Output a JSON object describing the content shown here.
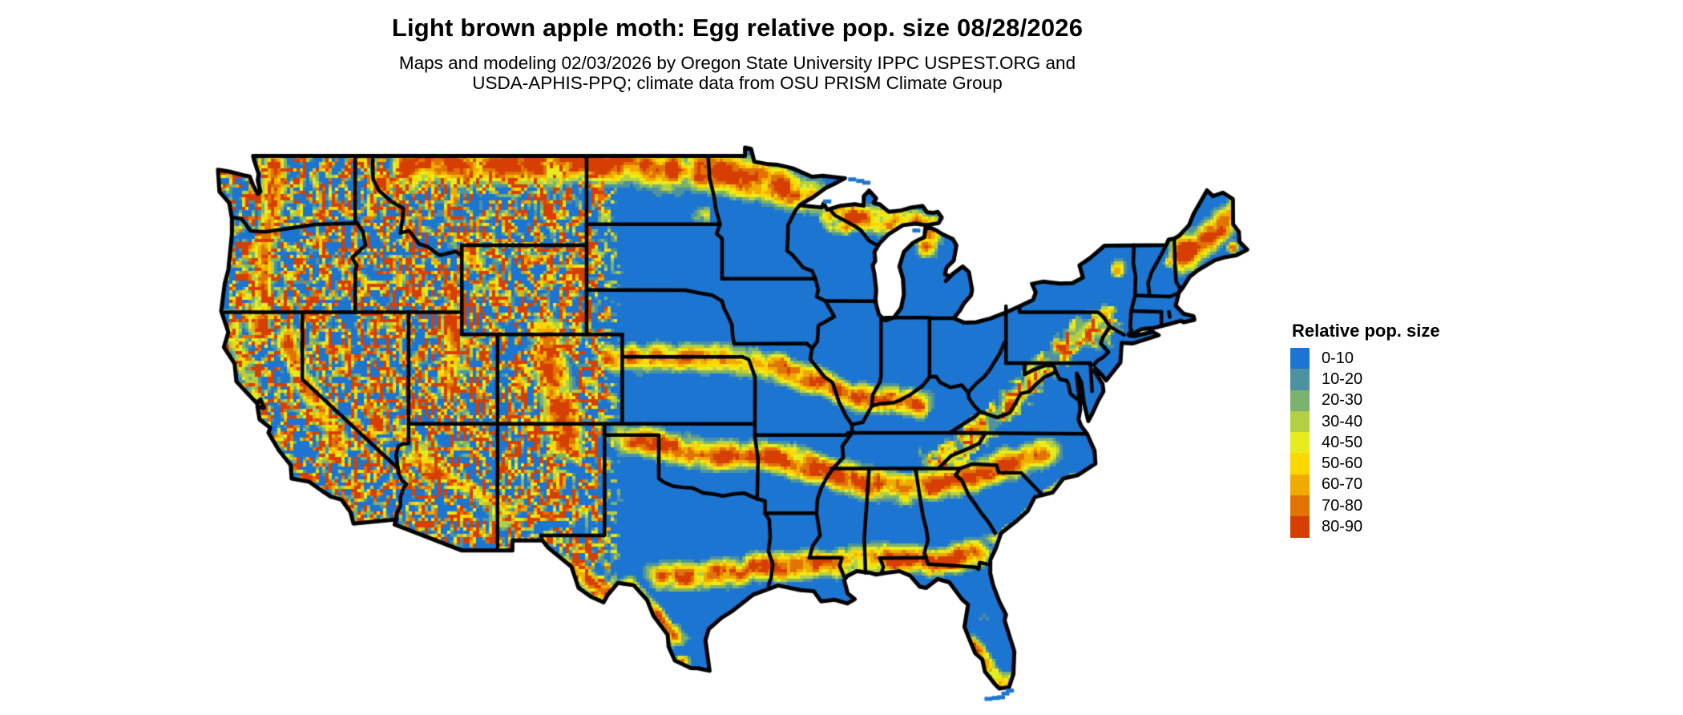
{
  "header": {
    "title": "Light brown apple moth: Egg relative pop. size 08/28/2026",
    "subtitle_line1": "Maps and modeling 02/03/2026 by Oregon State University IPPC USPEST.ORG and",
    "subtitle_line2": "USDA-APHIS-PPQ; climate data from OSU PRISM Climate Group"
  },
  "legend": {
    "title": "Relative pop. size",
    "items": [
      {
        "label": "0-10",
        "color": "#1C75D1"
      },
      {
        "label": "10-20",
        "color": "#4C92A1"
      },
      {
        "label": "20-30",
        "color": "#7BB26F"
      },
      {
        "label": "30-40",
        "color": "#B3CF44"
      },
      {
        "label": "40-50",
        "color": "#E7EC20"
      },
      {
        "label": "50-60",
        "color": "#FDD800"
      },
      {
        "label": "60-70",
        "color": "#F0AB01"
      },
      {
        "label": "70-80",
        "color": "#E07301"
      },
      {
        "label": "80-90",
        "color": "#D63F01"
      }
    ]
  },
  "map": {
    "base_color": "#1C75D1",
    "water_color": "#FFFFFF",
    "border_color": "#000000"
  }
}
